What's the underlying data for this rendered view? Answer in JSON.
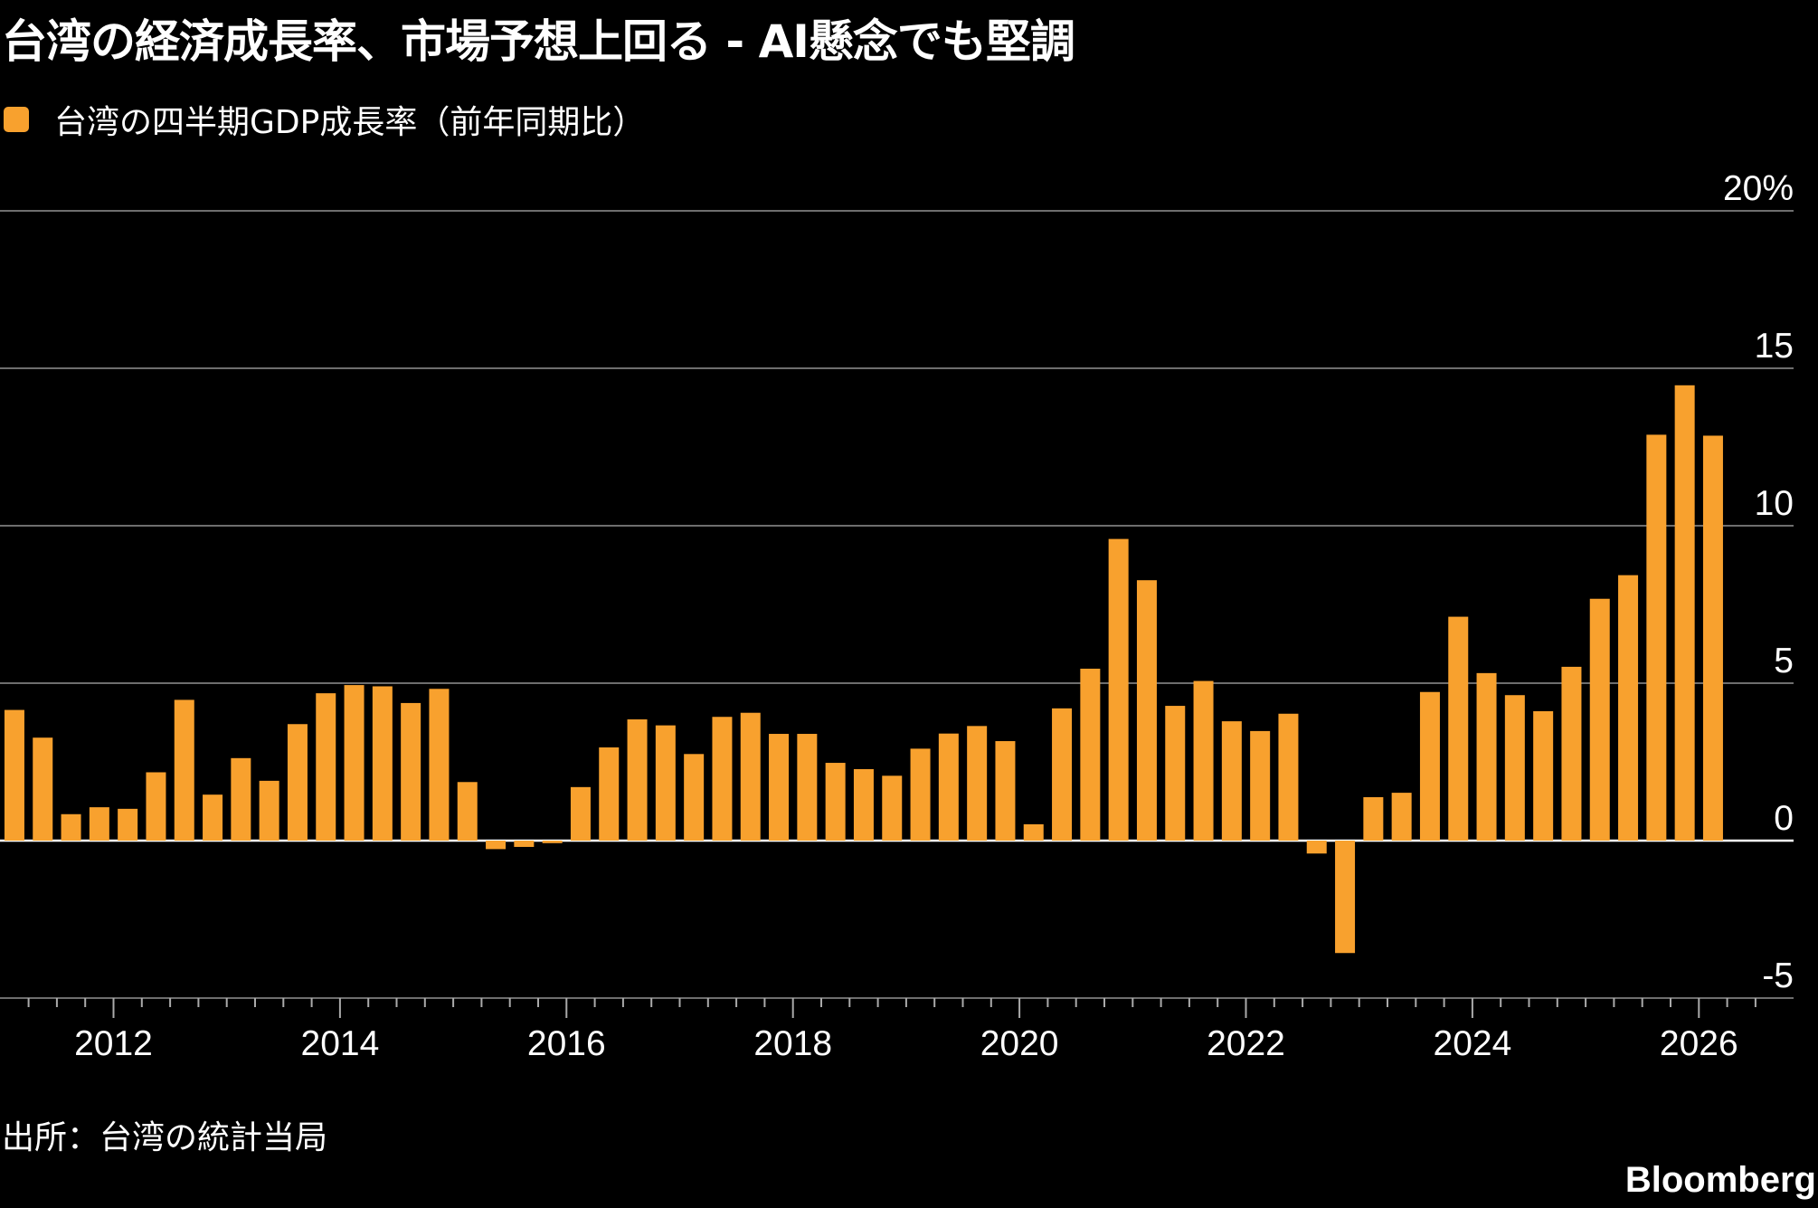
{
  "title": "台湾の経済成長率、市場予想上回る - AI懸念でも堅調",
  "legend_label": "台湾の四半期GDP成長率（前年同期比）",
  "source": "出所：台湾の統計当局",
  "brand": "Bloomberg",
  "colors": {
    "background": "#000000",
    "bar": "#f8a12e",
    "grid": "#6e6e6e",
    "text": "#ffffff"
  },
  "chart_data": {
    "type": "bar",
    "unit": "%",
    "ylim": [
      -5,
      20
    ],
    "y_ticks": [
      20,
      15,
      10,
      5,
      0,
      -5
    ],
    "y_tick_labels": [
      "20%",
      "15",
      "10",
      "5",
      "0",
      "-5"
    ],
    "x_tick_labels": [
      "2012",
      "2014",
      "2016",
      "2018",
      "2020",
      "2022",
      "2024",
      "2026"
    ],
    "grid": true,
    "legend_position": "top-left",
    "series": [
      {
        "name": "台湾の四半期GDP成長率（前年同期比）",
        "categories": [
          "2011Q2",
          "2011Q3",
          "2011Q4",
          "2012Q1",
          "2012Q2",
          "2012Q3",
          "2012Q4",
          "2013Q1",
          "2013Q2",
          "2013Q3",
          "2013Q4",
          "2014Q1",
          "2014Q2",
          "2014Q3",
          "2014Q4",
          "2015Q1",
          "2015Q2",
          "2015Q3",
          "2015Q4",
          "2016Q1",
          "2016Q2",
          "2016Q3",
          "2016Q4",
          "2017Q1",
          "2017Q2",
          "2017Q3",
          "2017Q4",
          "2018Q1",
          "2018Q2",
          "2018Q3",
          "2018Q4",
          "2019Q1",
          "2019Q2",
          "2019Q3",
          "2019Q4",
          "2020Q1",
          "2020Q2",
          "2020Q3",
          "2020Q4",
          "2021Q1",
          "2021Q2",
          "2021Q3",
          "2021Q4",
          "2022Q1",
          "2022Q2",
          "2022Q3",
          "2022Q4",
          "2023Q1",
          "2023Q2",
          "2023Q3",
          "2023Q4",
          "2024Q1",
          "2024Q2",
          "2024Q3",
          "2024Q4",
          "2025Q1",
          "2025Q2",
          "2025Q3",
          "2025Q4",
          "2026Q1",
          "2026Q2"
        ],
        "values": [
          4.15,
          3.27,
          0.84,
          1.06,
          1.01,
          2.17,
          4.47,
          1.46,
          2.62,
          1.9,
          3.7,
          4.68,
          4.94,
          4.9,
          4.37,
          4.82,
          1.86,
          -0.27,
          -0.2,
          -0.08,
          1.7,
          2.96,
          3.85,
          3.66,
          2.75,
          3.93,
          4.06,
          3.39,
          3.39,
          2.47,
          2.27,
          2.06,
          2.92,
          3.4,
          3.64,
          3.16,
          0.52,
          4.2,
          5.46,
          9.58,
          8.27,
          4.28,
          5.07,
          3.79,
          3.48,
          4.03,
          -0.41,
          -3.57,
          1.38,
          1.52,
          4.72,
          7.11,
          5.32,
          4.62,
          4.11,
          5.52,
          7.68,
          8.43,
          12.89,
          14.46,
          12.86
        ]
      }
    ]
  }
}
